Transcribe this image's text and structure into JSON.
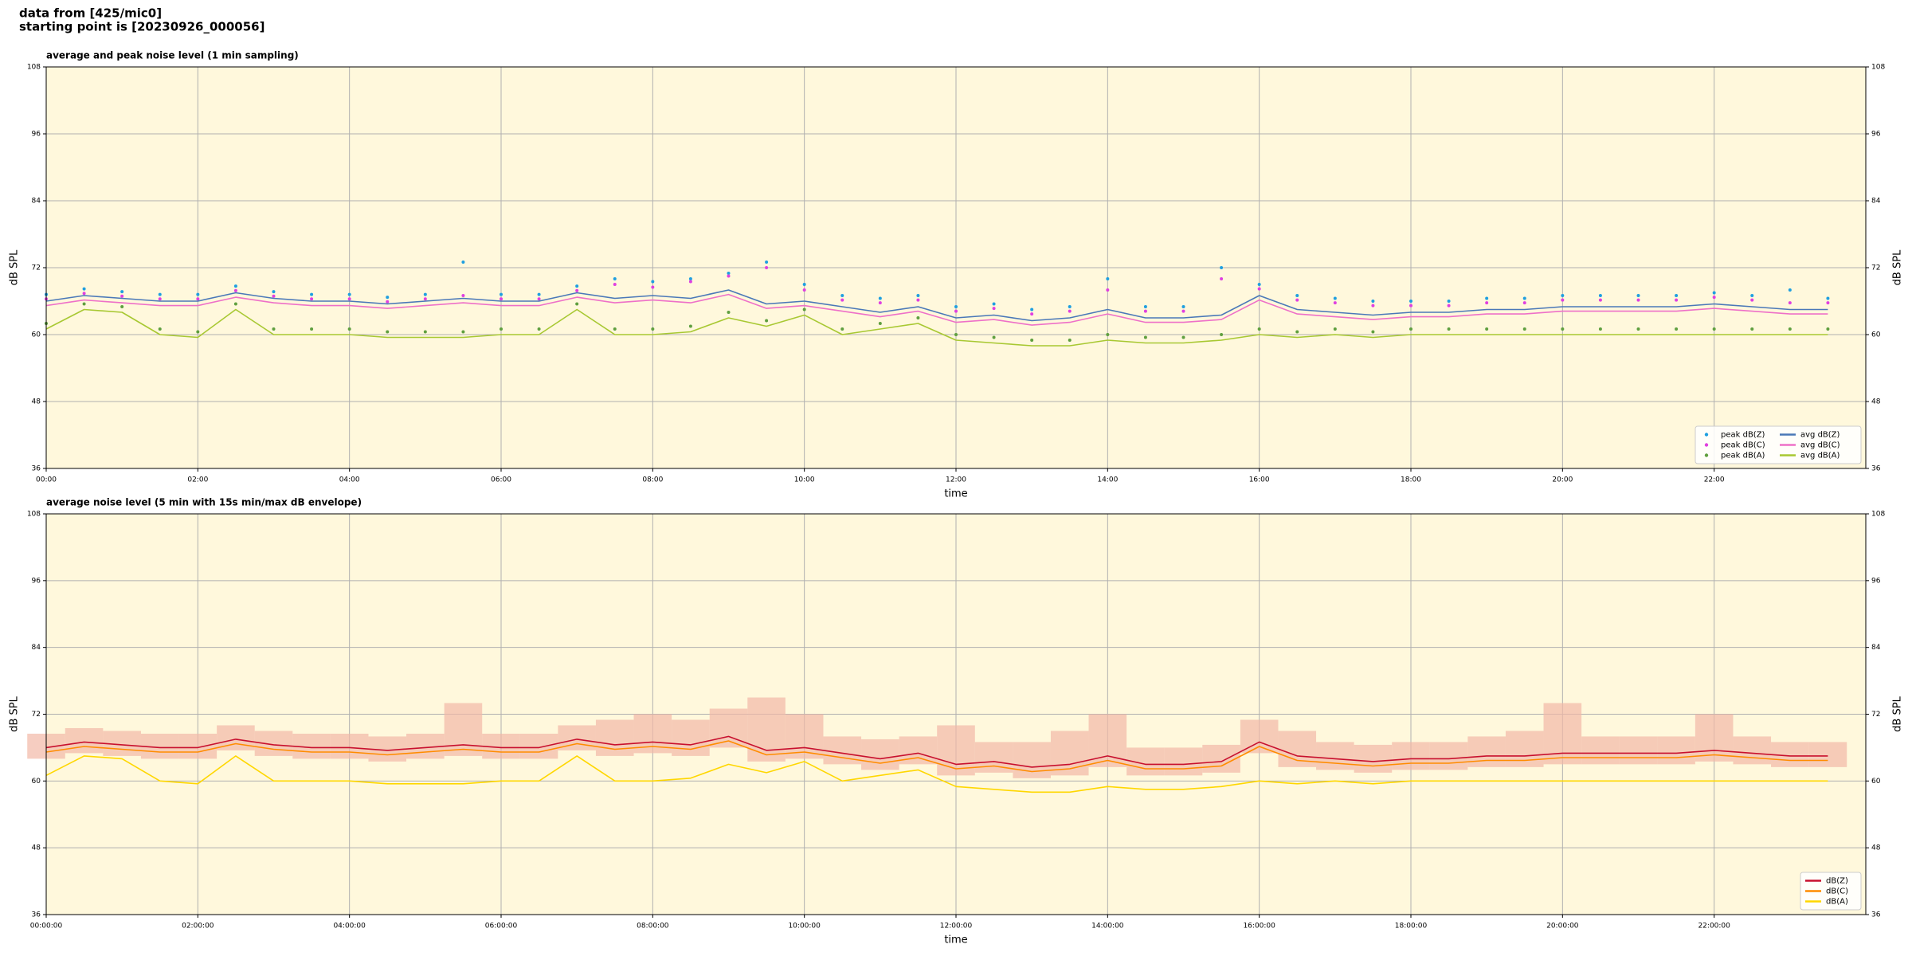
{
  "header": {
    "source": "data from [425/mic0]",
    "start": "starting point is [20230926_000056]"
  },
  "chart_data": [
    {
      "type": "line",
      "title": "average and peak noise level (1 min sampling)",
      "xlabel": "time",
      "ylabel": "dB SPL",
      "xlim": [
        0,
        24
      ],
      "ylim": [
        36,
        108
      ],
      "yticks": [
        36,
        48,
        60,
        72,
        84,
        96,
        108
      ],
      "xticks": [
        {
          "value": 0,
          "label": "00:00"
        },
        {
          "value": 2,
          "label": "02:00"
        },
        {
          "value": 4,
          "label": "04:00"
        },
        {
          "value": 6,
          "label": "06:00"
        },
        {
          "value": 8,
          "label": "08:00"
        },
        {
          "value": 10,
          "label": "10:00"
        },
        {
          "value": 12,
          "label": "12:00"
        },
        {
          "value": 14,
          "label": "14:00"
        },
        {
          "value": 16,
          "label": "16:00"
        },
        {
          "value": 18,
          "label": "18:00"
        },
        {
          "value": 20,
          "label": "20:00"
        },
        {
          "value": 22,
          "label": "22:00"
        }
      ],
      "grid": true,
      "background": "#fff8dc",
      "legend_loc": "lower right",
      "legend_cols": 2,
      "x": [
        0,
        0.5,
        1,
        1.5,
        2,
        2.5,
        3,
        3.5,
        4,
        4.5,
        5,
        5.5,
        6,
        6.5,
        7,
        7.5,
        8,
        8.5,
        9,
        9.5,
        10,
        10.5,
        11,
        11.5,
        12,
        12.5,
        13,
        13.5,
        14,
        14.5,
        15,
        15.5,
        16,
        16.5,
        17,
        17.5,
        18,
        18.5,
        19,
        19.5,
        20,
        20.5,
        21,
        21.5,
        22,
        22.5,
        23,
        23.5
      ],
      "series": [
        {
          "name": "peak dB(Z)",
          "kind": "scatter",
          "color": "#1f9fe0",
          "values": [
            67.2,
            68.2,
            67.7,
            67.2,
            67.2,
            68.7,
            67.7,
            67.2,
            67.2,
            66.7,
            67.2,
            73,
            67.2,
            67.2,
            68.7,
            70,
            69.5,
            70,
            71,
            73,
            69,
            67,
            66.5,
            67,
            65,
            65.5,
            64.5,
            65,
            70,
            65,
            65,
            72,
            69,
            67,
            66.5,
            66,
            66,
            66,
            66.5,
            66.5,
            67,
            67,
            67,
            67,
            67.5,
            67,
            68,
            66.5
          ]
        },
        {
          "name": "peak dB(C)",
          "kind": "scatter",
          "color": "#e040e0",
          "values": [
            66.4,
            67.4,
            66.9,
            66.4,
            66.4,
            67.9,
            66.9,
            66.4,
            66.4,
            65.9,
            66.4,
            67,
            66.4,
            66.4,
            67.9,
            69,
            68.5,
            69.5,
            70.5,
            72,
            68,
            66.2,
            65.7,
            66.2,
            64.2,
            64.7,
            63.7,
            64.2,
            68,
            64.2,
            64.2,
            70,
            68.2,
            66.2,
            65.7,
            65.2,
            65.2,
            65.2,
            65.7,
            65.7,
            66.2,
            66.2,
            66.2,
            66.2,
            66.7,
            66.2,
            65.7,
            65.7
          ]
        },
        {
          "name": "peak dB(A)",
          "kind": "scatter",
          "color": "#5f9f3f",
          "values": [
            62,
            65.5,
            65,
            61,
            60.5,
            65.5,
            61,
            61,
            61,
            60.5,
            60.5,
            60.5,
            61,
            61,
            65.5,
            61,
            61,
            61.5,
            64,
            62.5,
            64.5,
            61,
            62,
            63,
            60,
            59.5,
            59,
            59,
            60,
            59.5,
            59.5,
            60,
            61,
            60.5,
            61,
            60.5,
            61,
            61,
            61,
            61,
            61,
            61,
            61,
            61,
            61,
            61,
            61,
            61
          ]
        },
        {
          "name": "avg dB(Z)",
          "kind": "line",
          "color": "#4a78b8",
          "values": [
            66,
            67,
            66.5,
            66,
            66,
            67.5,
            66.5,
            66,
            66,
            65.5,
            66,
            66.5,
            66,
            66,
            67.5,
            66.5,
            67,
            66.5,
            68,
            65.5,
            66,
            65,
            64,
            65,
            63,
            63.5,
            62.5,
            63,
            64.5,
            63,
            63,
            63.5,
            67,
            64.5,
            64,
            63.5,
            64,
            64,
            64.5,
            64.5,
            65,
            65,
            65,
            65,
            65.5,
            65,
            64.5,
            64.5
          ]
        },
        {
          "name": "avg dB(C)",
          "kind": "line",
          "color": "#ee70c8",
          "values": [
            65.2,
            66.2,
            65.7,
            65.2,
            65.2,
            66.7,
            65.7,
            65.2,
            65.2,
            64.7,
            65.2,
            65.7,
            65.2,
            65.2,
            66.7,
            65.7,
            66.2,
            65.7,
            67.2,
            64.7,
            65.2,
            64.2,
            63.2,
            64.2,
            62.2,
            62.7,
            61.7,
            62.2,
            63.7,
            62.2,
            62.2,
            62.7,
            66.2,
            63.7,
            63.2,
            62.7,
            63.2,
            63.2,
            63.7,
            63.7,
            64.2,
            64.2,
            64.2,
            64.2,
            64.7,
            64.2,
            63.7,
            63.7
          ]
        },
        {
          "name": "avg dB(A)",
          "kind": "line",
          "color": "#a8c832",
          "values": [
            61,
            64.5,
            64,
            60,
            59.5,
            64.5,
            60,
            60,
            60,
            59.5,
            59.5,
            59.5,
            60,
            60,
            64.5,
            60,
            60,
            60.5,
            63,
            61.5,
            63.5,
            60,
            61,
            62,
            59,
            58.5,
            58,
            58,
            59,
            58.5,
            58.5,
            59,
            60,
            59.5,
            60,
            59.5,
            60,
            60,
            60,
            60,
            60,
            60,
            60,
            60,
            60,
            60,
            60,
            60
          ]
        }
      ]
    },
    {
      "type": "line",
      "title": "average noise level (5 min with 15s min/max dB envelope)",
      "xlabel": "time",
      "ylabel": "dB SPL",
      "xlim": [
        0,
        24
      ],
      "ylim": [
        36,
        108
      ],
      "yticks": [
        36,
        48,
        60,
        72,
        84,
        96,
        108
      ],
      "xticks": [
        {
          "value": 0,
          "label": "00:00:00"
        },
        {
          "value": 2,
          "label": "02:00:00"
        },
        {
          "value": 4,
          "label": "04:00:00"
        },
        {
          "value": 6,
          "label": "06:00:00"
        },
        {
          "value": 8,
          "label": "08:00:00"
        },
        {
          "value": 10,
          "label": "10:00:00"
        },
        {
          "value": 12,
          "label": "12:00:00"
        },
        {
          "value": 14,
          "label": "14:00:00"
        },
        {
          "value": 16,
          "label": "16:00:00"
        },
        {
          "value": 18,
          "label": "18:00:00"
        },
        {
          "value": 20,
          "label": "20:00:00"
        },
        {
          "value": 22,
          "label": "22:00:00"
        }
      ],
      "grid": true,
      "background": "#fff8dc",
      "legend_loc": "lower right",
      "legend_cols": 1,
      "envelope_color": "#f2b8a6",
      "x": [
        0,
        0.5,
        1,
        1.5,
        2,
        2.5,
        3,
        3.5,
        4,
        4.5,
        5,
        5.5,
        6,
        6.5,
        7,
        7.5,
        8,
        8.5,
        9,
        9.5,
        10,
        10.5,
        11,
        11.5,
        12,
        12.5,
        13,
        13.5,
        14,
        14.5,
        15,
        15.5,
        16,
        16.5,
        17,
        17.5,
        18,
        18.5,
        19,
        19.5,
        20,
        20.5,
        21,
        21.5,
        22,
        22.5,
        23,
        23.5
      ],
      "series": [
        {
          "name": "dB(Z)",
          "kind": "line",
          "color": "#c8102e",
          "values": [
            66,
            67,
            66.5,
            66,
            66,
            67.5,
            66.5,
            66,
            66,
            65.5,
            66,
            66.5,
            66,
            66,
            67.5,
            66.5,
            67,
            66.5,
            68,
            65.5,
            66,
            65,
            64,
            65,
            63,
            63.5,
            62.5,
            63,
            64.5,
            63,
            63,
            63.5,
            67,
            64.5,
            64,
            63.5,
            64,
            64,
            64.5,
            64.5,
            65,
            65,
            65,
            65,
            65.5,
            65,
            64.5,
            64.5
          ],
          "envelope_min": [
            64,
            65,
            64.5,
            64,
            64,
            65.5,
            64.5,
            64,
            64,
            63.5,
            64,
            64.5,
            64,
            64,
            65.5,
            64.5,
            65,
            64.5,
            66,
            63.5,
            64,
            63,
            62,
            63,
            61,
            61.5,
            60.5,
            61,
            62.5,
            61,
            61,
            61.5,
            65,
            62.5,
            62,
            61.5,
            62,
            62,
            62.5,
            62.5,
            63,
            63,
            63,
            63,
            63.5,
            63,
            62.5,
            62.5
          ],
          "envelope_max": [
            68.5,
            69.5,
            69,
            68.5,
            68.5,
            70,
            69,
            68.5,
            68.5,
            68,
            68.5,
            74,
            68.5,
            68.5,
            70,
            71,
            72,
            71,
            73,
            75,
            72,
            68,
            67.5,
            68,
            70,
            67,
            67,
            69,
            72,
            66,
            66,
            66.5,
            71,
            69,
            67,
            66.5,
            67,
            67,
            68,
            69,
            74,
            68,
            68,
            68,
            72,
            68,
            67,
            67
          ]
        },
        {
          "name": "dB(C)",
          "kind": "line",
          "color": "#ff8c00",
          "values": [
            65.2,
            66.2,
            65.7,
            65.2,
            65.2,
            66.7,
            65.7,
            65.2,
            65.2,
            64.7,
            65.2,
            65.7,
            65.2,
            65.2,
            66.7,
            65.7,
            66.2,
            65.7,
            67.2,
            64.7,
            65.2,
            64.2,
            63.2,
            64.2,
            62.2,
            62.7,
            61.7,
            62.2,
            63.7,
            62.2,
            62.2,
            62.7,
            66.2,
            63.7,
            63.2,
            62.7,
            63.2,
            63.2,
            63.7,
            63.7,
            64.2,
            64.2,
            64.2,
            64.2,
            64.7,
            64.2,
            63.7,
            63.7
          ]
        },
        {
          "name": "dB(A)",
          "kind": "line",
          "color": "#ffd700",
          "values": [
            61,
            64.5,
            64,
            60,
            59.5,
            64.5,
            60,
            60,
            60,
            59.5,
            59.5,
            59.5,
            60,
            60,
            64.5,
            60,
            60,
            60.5,
            63,
            61.5,
            63.5,
            60,
            61,
            62,
            59,
            58.5,
            58,
            58,
            59,
            58.5,
            58.5,
            59,
            60,
            59.5,
            60,
            59.5,
            60,
            60,
            60,
            60,
            60,
            60,
            60,
            60,
            60,
            60,
            60,
            60
          ]
        }
      ]
    }
  ]
}
